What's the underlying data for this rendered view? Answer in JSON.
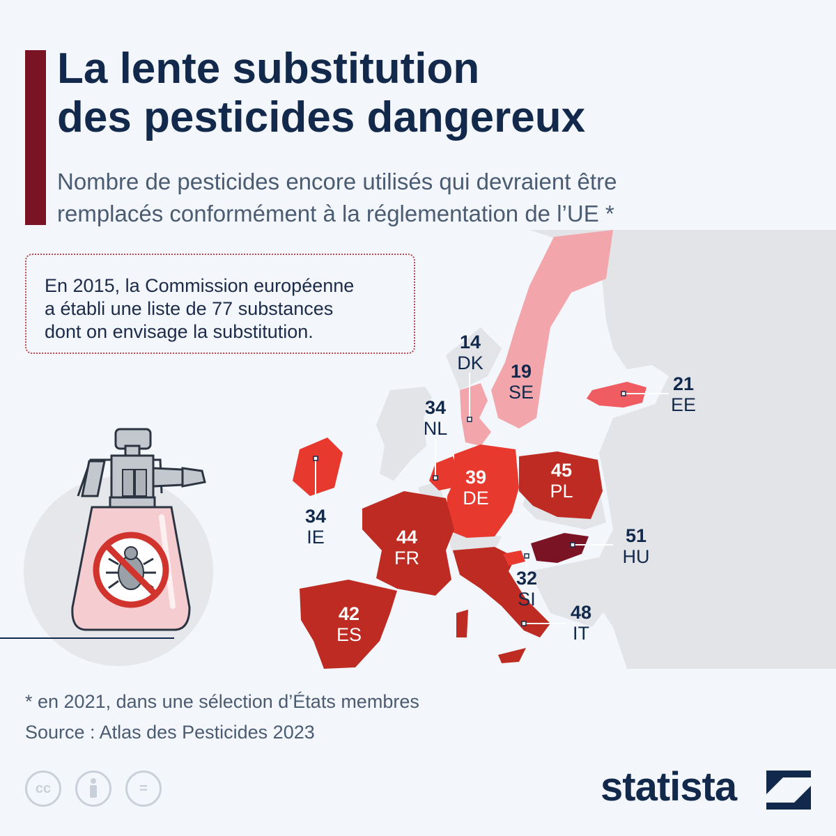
{
  "header": {
    "title_line1": "La lente substitution",
    "title_line2": "des pesticides dangereux",
    "subtitle_line1": "Nombre de pesticides encore utilisés qui devraient être",
    "subtitle_line2": "remplacés conformément à la réglementation de l’UE *"
  },
  "info_box": {
    "line1": "En 2015, la Commission européenne",
    "line2": "a établi une liste de 77 substances",
    "line3": "dont on envisage la substitution."
  },
  "map": {
    "countries": [
      {
        "code": "DK",
        "value": 14,
        "color": "#f2a6ab"
      },
      {
        "code": "SE",
        "value": 19,
        "color": "#f2a6ab"
      },
      {
        "code": "EE",
        "value": 21,
        "color": "#ef5d62"
      },
      {
        "code": "NL",
        "value": 34,
        "color": "#e8392e"
      },
      {
        "code": "IE",
        "value": 34,
        "color": "#e8392e"
      },
      {
        "code": "DE",
        "value": 39,
        "color": "#e8392e"
      },
      {
        "code": "PL",
        "value": 45,
        "color": "#bd2b22"
      },
      {
        "code": "FR",
        "value": 44,
        "color": "#bd2b22"
      },
      {
        "code": "ES",
        "value": 42,
        "color": "#bd2b22"
      },
      {
        "code": "IT",
        "value": 48,
        "color": "#bd2b22"
      },
      {
        "code": "SI",
        "value": 32,
        "color": "#e8392e"
      },
      {
        "code": "HU",
        "value": 51,
        "color": "#7a1424"
      }
    ],
    "other_land_color": "#e2e4e8"
  },
  "footer": {
    "footnote": "* en 2021, dans une sélection d’États membres",
    "source": "Source : Atlas des Pesticides 2023",
    "brand": "statista"
  },
  "colors": {
    "accent": "#7a1424",
    "title": "#13294b",
    "subtitle": "#4a5b72"
  },
  "icons": [
    "creative-commons-icon",
    "attribution-icon",
    "no-derivatives-icon",
    "pesticide-sprayer-icon",
    "no-bug-icon",
    "statista-logo-icon"
  ]
}
